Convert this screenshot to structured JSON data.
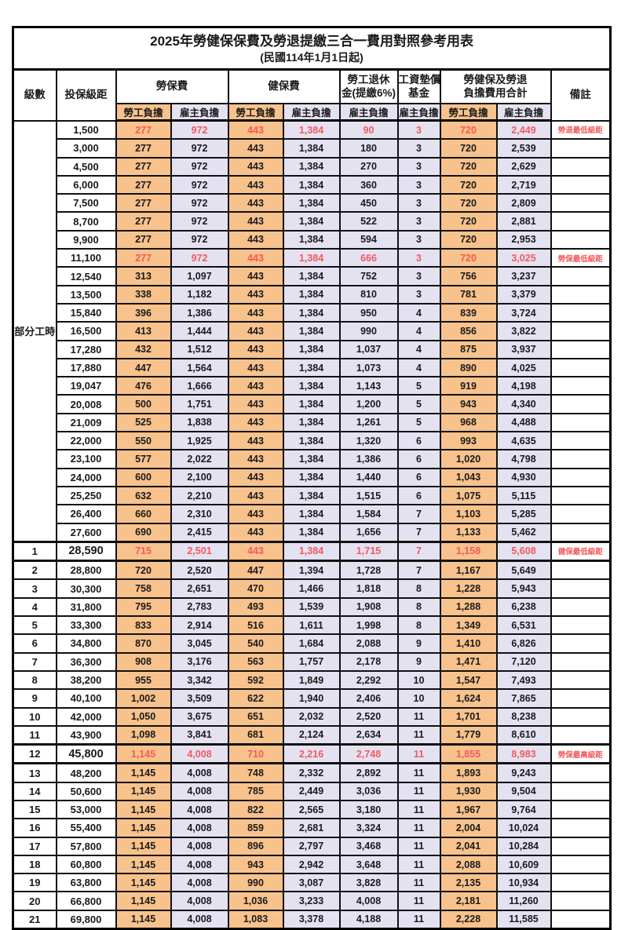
{
  "title": {
    "main": "2025年勞健保保費及勞退提繳三合一費用對照參考用表",
    "sub": "(民國114年1月1日起)"
  },
  "colors": {
    "employee_bg": "#F7C28C",
    "employer_bg": "#E4E2F1",
    "highlight_red": "#F4595C"
  },
  "header": {
    "level": "級數",
    "bracket": "投保級距",
    "labor_fee": "勞保費",
    "health_fee": "健保費",
    "pension_line1": "勞工退休",
    "pension_line2": "金(提繳6%)",
    "wage_fund_line1": "工資墊償",
    "wage_fund_line2": "基金",
    "total_line1": "勞健保及勞退",
    "total_line2": "負擔費用合計",
    "remark": "備註",
    "employee_burden": "勞工負擔",
    "employer_burden": "雇主負擔"
  },
  "group": {
    "label": "部分工時",
    "rowspan": 23
  },
  "rows": [
    {
      "group_label": "部分工時",
      "group_rowspan": 23,
      "bracket": "1,500",
      "labor_emp": "277",
      "labor_er": "972",
      "health_emp": "443",
      "health_er": "1,384",
      "pension": "90",
      "fund": "3",
      "total_emp": "720",
      "total_er": "2,449",
      "remark": "勞退最低級距",
      "hl": true
    },
    {
      "bracket": "3,000",
      "labor_emp": "277",
      "labor_er": "972",
      "health_emp": "443",
      "health_er": "1,384",
      "pension": "180",
      "fund": "3",
      "total_emp": "720",
      "total_er": "2,539",
      "remark": ""
    },
    {
      "bracket": "4,500",
      "labor_emp": "277",
      "labor_er": "972",
      "health_emp": "443",
      "health_er": "1,384",
      "pension": "270",
      "fund": "3",
      "total_emp": "720",
      "total_er": "2,629",
      "remark": ""
    },
    {
      "bracket": "6,000",
      "labor_emp": "277",
      "labor_er": "972",
      "health_emp": "443",
      "health_er": "1,384",
      "pension": "360",
      "fund": "3",
      "total_emp": "720",
      "total_er": "2,719",
      "remark": ""
    },
    {
      "bracket": "7,500",
      "labor_emp": "277",
      "labor_er": "972",
      "health_emp": "443",
      "health_er": "1,384",
      "pension": "450",
      "fund": "3",
      "total_emp": "720",
      "total_er": "2,809",
      "remark": ""
    },
    {
      "bracket": "8,700",
      "labor_emp": "277",
      "labor_er": "972",
      "health_emp": "443",
      "health_er": "1,384",
      "pension": "522",
      "fund": "3",
      "total_emp": "720",
      "total_er": "2,881",
      "remark": ""
    },
    {
      "bracket": "9,900",
      "labor_emp": "277",
      "labor_er": "972",
      "health_emp": "443",
      "health_er": "1,384",
      "pension": "594",
      "fund": "3",
      "total_emp": "720",
      "total_er": "2,953",
      "remark": ""
    },
    {
      "bracket": "11,100",
      "labor_emp": "277",
      "labor_er": "972",
      "health_emp": "443",
      "health_er": "1,384",
      "pension": "666",
      "fund": "3",
      "total_emp": "720",
      "total_er": "3,025",
      "remark": "勞保最低級距",
      "hl": true
    },
    {
      "bracket": "12,540",
      "labor_emp": "313",
      "labor_er": "1,097",
      "health_emp": "443",
      "health_er": "1,384",
      "pension": "752",
      "fund": "3",
      "total_emp": "756",
      "total_er": "3,237",
      "remark": ""
    },
    {
      "bracket": "13,500",
      "labor_emp": "338",
      "labor_er": "1,182",
      "health_emp": "443",
      "health_er": "1,384",
      "pension": "810",
      "fund": "3",
      "total_emp": "781",
      "total_er": "3,379",
      "remark": ""
    },
    {
      "bracket": "15,840",
      "labor_emp": "396",
      "labor_er": "1,386",
      "health_emp": "443",
      "health_er": "1,384",
      "pension": "950",
      "fund": "4",
      "total_emp": "839",
      "total_er": "3,724",
      "remark": ""
    },
    {
      "bracket": "16,500",
      "labor_emp": "413",
      "labor_er": "1,444",
      "health_emp": "443",
      "health_er": "1,384",
      "pension": "990",
      "fund": "4",
      "total_emp": "856",
      "total_er": "3,822",
      "remark": ""
    },
    {
      "bracket": "17,280",
      "labor_emp": "432",
      "labor_er": "1,512",
      "health_emp": "443",
      "health_er": "1,384",
      "pension": "1,037",
      "fund": "4",
      "total_emp": "875",
      "total_er": "3,937",
      "remark": ""
    },
    {
      "bracket": "17,880",
      "labor_emp": "447",
      "labor_er": "1,564",
      "health_emp": "443",
      "health_er": "1,384",
      "pension": "1,073",
      "fund": "4",
      "total_emp": "890",
      "total_er": "4,025",
      "remark": ""
    },
    {
      "bracket": "19,047",
      "labor_emp": "476",
      "labor_er": "1,666",
      "health_emp": "443",
      "health_er": "1,384",
      "pension": "1,143",
      "fund": "5",
      "total_emp": "919",
      "total_er": "4,198",
      "remark": ""
    },
    {
      "bracket": "20,008",
      "labor_emp": "500",
      "labor_er": "1,751",
      "health_emp": "443",
      "health_er": "1,384",
      "pension": "1,200",
      "fund": "5",
      "total_emp": "943",
      "total_er": "4,340",
      "remark": ""
    },
    {
      "bracket": "21,009",
      "labor_emp": "525",
      "labor_er": "1,838",
      "health_emp": "443",
      "health_er": "1,384",
      "pension": "1,261",
      "fund": "5",
      "total_emp": "968",
      "total_er": "4,488",
      "remark": ""
    },
    {
      "bracket": "22,000",
      "labor_emp": "550",
      "labor_er": "1,925",
      "health_emp": "443",
      "health_er": "1,384",
      "pension": "1,320",
      "fund": "6",
      "total_emp": "993",
      "total_er": "4,635",
      "remark": ""
    },
    {
      "bracket": "23,100",
      "labor_emp": "577",
      "labor_er": "2,022",
      "health_emp": "443",
      "health_er": "1,384",
      "pension": "1,386",
      "fund": "6",
      "total_emp": "1,020",
      "total_er": "4,798",
      "remark": ""
    },
    {
      "bracket": "24,000",
      "labor_emp": "600",
      "labor_er": "2,100",
      "health_emp": "443",
      "health_er": "1,384",
      "pension": "1,440",
      "fund": "6",
      "total_emp": "1,043",
      "total_er": "4,930",
      "remark": ""
    },
    {
      "bracket": "25,250",
      "labor_emp": "632",
      "labor_er": "2,210",
      "health_emp": "443",
      "health_er": "1,384",
      "pension": "1,515",
      "fund": "6",
      "total_emp": "1,075",
      "total_er": "5,115",
      "remark": ""
    },
    {
      "bracket": "26,400",
      "labor_emp": "660",
      "labor_er": "2,310",
      "health_emp": "443",
      "health_er": "1,384",
      "pension": "1,584",
      "fund": "7",
      "total_emp": "1,103",
      "total_er": "5,285",
      "remark": ""
    },
    {
      "bracket": "27,600",
      "labor_emp": "690",
      "labor_er": "2,415",
      "health_emp": "443",
      "health_er": "1,384",
      "pension": "1,656",
      "fund": "7",
      "total_emp": "1,133",
      "total_er": "5,462",
      "remark": ""
    },
    {
      "level": "1",
      "bracket": "28,590",
      "labor_emp": "715",
      "labor_er": "2,501",
      "health_emp": "443",
      "health_er": "1,384",
      "pension": "1,715",
      "fund": "7",
      "total_emp": "1,158",
      "total_er": "5,608",
      "remark": "健保最低級距",
      "hl": true,
      "thick": true,
      "big": true
    },
    {
      "level": "2",
      "bracket": "28,800",
      "labor_emp": "720",
      "labor_er": "2,520",
      "health_emp": "447",
      "health_er": "1,394",
      "pension": "1,728",
      "fund": "7",
      "total_emp": "1,167",
      "total_er": "5,649",
      "remark": ""
    },
    {
      "level": "3",
      "bracket": "30,300",
      "labor_emp": "758",
      "labor_er": "2,651",
      "health_emp": "470",
      "health_er": "1,466",
      "pension": "1,818",
      "fund": "8",
      "total_emp": "1,228",
      "total_er": "5,943",
      "remark": ""
    },
    {
      "level": "4",
      "bracket": "31,800",
      "labor_emp": "795",
      "labor_er": "2,783",
      "health_emp": "493",
      "health_er": "1,539",
      "pension": "1,908",
      "fund": "8",
      "total_emp": "1,288",
      "total_er": "6,238",
      "remark": ""
    },
    {
      "level": "5",
      "bracket": "33,300",
      "labor_emp": "833",
      "labor_er": "2,914",
      "health_emp": "516",
      "health_er": "1,611",
      "pension": "1,998",
      "fund": "8",
      "total_emp": "1,349",
      "total_er": "6,531",
      "remark": ""
    },
    {
      "level": "6",
      "bracket": "34,800",
      "labor_emp": "870",
      "labor_er": "3,045",
      "health_emp": "540",
      "health_er": "1,684",
      "pension": "2,088",
      "fund": "9",
      "total_emp": "1,410",
      "total_er": "6,826",
      "remark": ""
    },
    {
      "level": "7",
      "bracket": "36,300",
      "labor_emp": "908",
      "labor_er": "3,176",
      "health_emp": "563",
      "health_er": "1,757",
      "pension": "2,178",
      "fund": "9",
      "total_emp": "1,471",
      "total_er": "7,120",
      "remark": ""
    },
    {
      "level": "8",
      "bracket": "38,200",
      "labor_emp": "955",
      "labor_er": "3,342",
      "health_emp": "592",
      "health_er": "1,849",
      "pension": "2,292",
      "fund": "10",
      "total_emp": "1,547",
      "total_er": "7,493",
      "remark": ""
    },
    {
      "level": "9",
      "bracket": "40,100",
      "labor_emp": "1,002",
      "labor_er": "3,509",
      "health_emp": "622",
      "health_er": "1,940",
      "pension": "2,406",
      "fund": "10",
      "total_emp": "1,624",
      "total_er": "7,865",
      "remark": ""
    },
    {
      "level": "10",
      "bracket": "42,000",
      "labor_emp": "1,050",
      "labor_er": "3,675",
      "health_emp": "651",
      "health_er": "2,032",
      "pension": "2,520",
      "fund": "11",
      "total_emp": "1,701",
      "total_er": "8,238",
      "remark": ""
    },
    {
      "level": "11",
      "bracket": "43,900",
      "labor_emp": "1,098",
      "labor_er": "3,841",
      "health_emp": "681",
      "health_er": "2,124",
      "pension": "2,634",
      "fund": "11",
      "total_emp": "1,779",
      "total_er": "8,610",
      "remark": ""
    },
    {
      "level": "12",
      "bracket": "45,800",
      "labor_emp": "1,145",
      "labor_er": "4,008",
      "health_emp": "710",
      "health_er": "2,216",
      "pension": "2,748",
      "fund": "11",
      "total_emp": "1,855",
      "total_er": "8,983",
      "remark": "勞保最高級距",
      "hl": true,
      "thick": true,
      "big": true
    },
    {
      "level": "13",
      "bracket": "48,200",
      "labor_emp": "1,145",
      "labor_er": "4,008",
      "health_emp": "748",
      "health_er": "2,332",
      "pension": "2,892",
      "fund": "11",
      "total_emp": "1,893",
      "total_er": "9,243",
      "remark": ""
    },
    {
      "level": "14",
      "bracket": "50,600",
      "labor_emp": "1,145",
      "labor_er": "4,008",
      "health_emp": "785",
      "health_er": "2,449",
      "pension": "3,036",
      "fund": "11",
      "total_emp": "1,930",
      "total_er": "9,504",
      "remark": ""
    },
    {
      "level": "15",
      "bracket": "53,000",
      "labor_emp": "1,145",
      "labor_er": "4,008",
      "health_emp": "822",
      "health_er": "2,565",
      "pension": "3,180",
      "fund": "11",
      "total_emp": "1,967",
      "total_er": "9,764",
      "remark": ""
    },
    {
      "level": "16",
      "bracket": "55,400",
      "labor_emp": "1,145",
      "labor_er": "4,008",
      "health_emp": "859",
      "health_er": "2,681",
      "pension": "3,324",
      "fund": "11",
      "total_emp": "2,004",
      "total_er": "10,024",
      "remark": ""
    },
    {
      "level": "17",
      "bracket": "57,800",
      "labor_emp": "1,145",
      "labor_er": "4,008",
      "health_emp": "896",
      "health_er": "2,797",
      "pension": "3,468",
      "fund": "11",
      "total_emp": "2,041",
      "total_er": "10,284",
      "remark": ""
    },
    {
      "level": "18",
      "bracket": "60,800",
      "labor_emp": "1,145",
      "labor_er": "4,008",
      "health_emp": "943",
      "health_er": "2,942",
      "pension": "3,648",
      "fund": "11",
      "total_emp": "2,088",
      "total_er": "10,609",
      "remark": ""
    },
    {
      "level": "19",
      "bracket": "63,800",
      "labor_emp": "1,145",
      "labor_er": "4,008",
      "health_emp": "990",
      "health_er": "3,087",
      "pension": "3,828",
      "fund": "11",
      "total_emp": "2,135",
      "total_er": "10,934",
      "remark": ""
    },
    {
      "level": "20",
      "bracket": "66,800",
      "labor_emp": "1,145",
      "labor_er": "4,008",
      "health_emp": "1,036",
      "health_er": "3,233",
      "pension": "4,008",
      "fund": "11",
      "total_emp": "2,181",
      "total_er": "11,260",
      "remark": ""
    },
    {
      "level": "21",
      "bracket": "69,800",
      "labor_emp": "1,145",
      "labor_er": "4,008",
      "health_emp": "1,083",
      "health_er": "3,378",
      "pension": "4,188",
      "fund": "11",
      "total_emp": "2,228",
      "total_er": "11,585",
      "remark": ""
    }
  ]
}
